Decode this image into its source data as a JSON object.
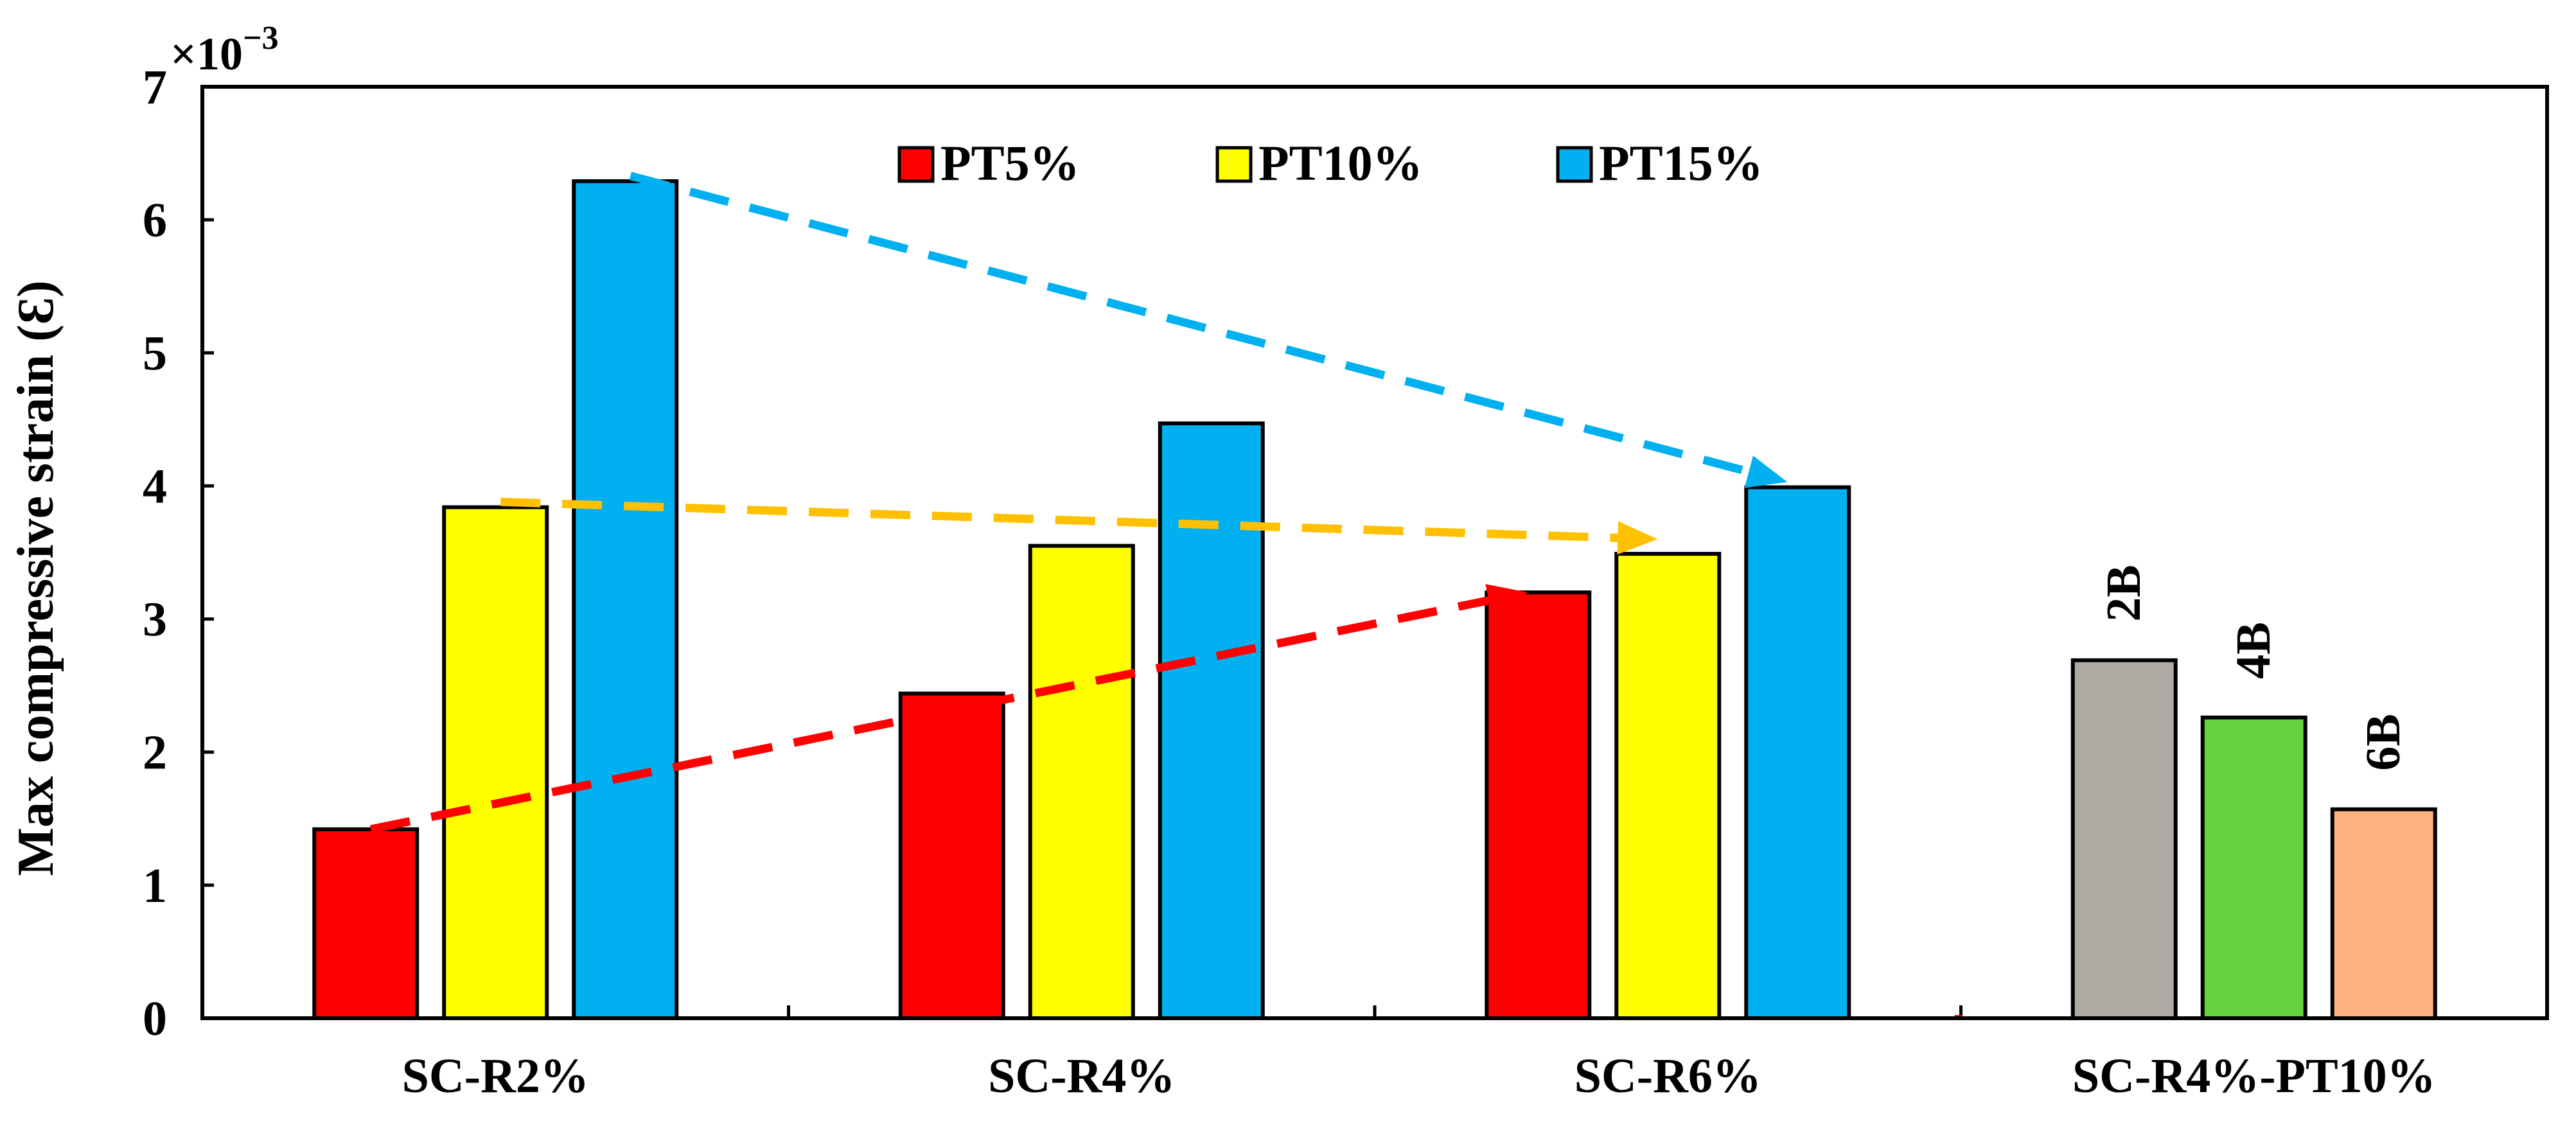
{
  "chart_data": {
    "type": "bar",
    "title": "",
    "xlabel": "",
    "ylabel": "Max compressive strain (Ɛ)",
    "y_multiplier_base": "×10",
    "y_multiplier_exp": "−3",
    "ylim": [
      0,
      7
    ],
    "yticks": [
      0,
      1,
      2,
      3,
      4,
      5,
      6,
      7
    ],
    "grid": false,
    "legend_position": "top-center",
    "groups": [
      {
        "label": "SC-R2%",
        "bars": [
          {
            "series": "PT5%",
            "value": 1.42,
            "color": "#ff0000"
          },
          {
            "series": "PT10%",
            "value": 3.84,
            "color": "#ffff00"
          },
          {
            "series": "PT15%",
            "value": 6.29,
            "color": "#00b0f0"
          }
        ]
      },
      {
        "label": "SC-R4%",
        "bars": [
          {
            "series": "PT5%",
            "value": 2.44,
            "color": "#ff0000"
          },
          {
            "series": "PT10%",
            "value": 3.55,
            "color": "#ffff00"
          },
          {
            "series": "PT15%",
            "value": 4.47,
            "color": "#00b0f0"
          }
        ]
      },
      {
        "label": "SC-R6%",
        "bars": [
          {
            "series": "PT5%",
            "value": 3.2,
            "color": "#ff0000"
          },
          {
            "series": "PT10%",
            "value": 3.49,
            "color": "#ffff00"
          },
          {
            "series": "PT15%",
            "value": 3.99,
            "color": "#00b0f0"
          }
        ]
      },
      {
        "label": "SC-R4%-PT10%",
        "bars": [
          {
            "series": "",
            "value": 2.69,
            "color": "#b0aaa5",
            "label": "2B"
          },
          {
            "series": "",
            "value": 2.26,
            "color": "#66d13f",
            "label": "4B"
          },
          {
            "series": "",
            "value": 1.57,
            "color": "#ffb07f",
            "label": "6B"
          }
        ]
      }
    ],
    "legend": [
      {
        "name": "PT5%",
        "color": "#ff0000"
      },
      {
        "name": "PT10%",
        "color": "#ffff00"
      },
      {
        "name": "PT15%",
        "color": "#00b0f0"
      }
    ],
    "trend_arrows": [
      {
        "series": "PT5%",
        "from_value": 1.42,
        "to_value": 3.2,
        "color": "#ff0000"
      },
      {
        "series": "PT10%",
        "from_value": 3.88,
        "to_value": 3.6,
        "color": "#ffc000"
      },
      {
        "series": "PT15%",
        "from_value": 6.33,
        "to_value": 4.03,
        "color": "#00b0f0"
      }
    ]
  }
}
